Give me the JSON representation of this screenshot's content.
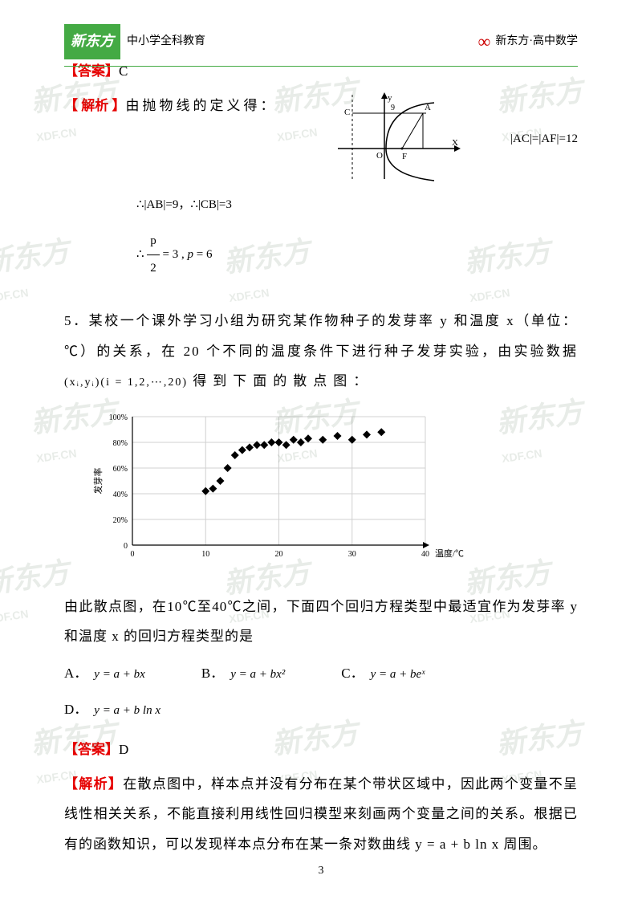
{
  "header": {
    "logo": "新东方",
    "subtitle": "中小学全科教育",
    "right_brand": "新东方·高中数学"
  },
  "q4": {
    "answer_label": "【答案】",
    "answer": "C",
    "analysis_label": "【 解析 】",
    "analysis_text": "由抛物线的定义得：",
    "eq_right": "|AC|=|AF|=12",
    "math_line1": "∴|AB|=9，∴|CB|=3",
    "math_line2": "∴ p/2 = 3 , p = 6",
    "diagram": {
      "labels": {
        "y": "y",
        "x": "X",
        "c": "C",
        "a": "A",
        "f": "F",
        "o": "O",
        "nine": "9"
      }
    }
  },
  "q5": {
    "number": "5．",
    "text_part1": "某校一个课外学习小组为研究某作物种子的发芽率 y 和温度 x（单位：℃）的关系，在 20 个不同的温度条件下进行种子发芽实验，由实验数据",
    "data_notation": "(xᵢ,yᵢ)(i = 1,2,⋯,20)",
    "text_part2": "得到下面的散点图：",
    "chart": {
      "ylabel": "发芽率",
      "xlabel": "温度/℃",
      "y_ticks": [
        "0",
        "20%",
        "40%",
        "60%",
        "80%",
        "100%"
      ],
      "x_ticks": [
        "0",
        "10",
        "20",
        "30",
        "40"
      ],
      "points": [
        [
          10,
          42
        ],
        [
          11,
          44
        ],
        [
          12,
          50
        ],
        [
          13,
          60
        ],
        [
          14,
          70
        ],
        [
          15,
          74
        ],
        [
          16,
          76
        ],
        [
          17,
          78
        ],
        [
          18,
          78
        ],
        [
          19,
          80
        ],
        [
          20,
          80
        ],
        [
          21,
          78
        ],
        [
          22,
          82
        ],
        [
          23,
          80
        ],
        [
          24,
          83
        ],
        [
          26,
          82
        ],
        [
          28,
          85
        ],
        [
          30,
          82
        ],
        [
          32,
          86
        ],
        [
          34,
          88
        ]
      ],
      "xlim": [
        0,
        40
      ],
      "ylim": [
        0,
        100
      ],
      "marker": "diamond",
      "marker_color": "#000000",
      "marker_size": 5,
      "grid_color": "#d0d0d0"
    },
    "after_chart": "由此散点图，在10℃至40℃之间，下面四个回归方程类型中最适宜作为发芽率 y 和温度 x 的回归方程类型的是",
    "option_a_label": "A．",
    "option_a": "y = a + bx",
    "option_b_label": "B．",
    "option_b": "y = a + bx²",
    "option_c_label": "C．",
    "option_c": "y = a + beˣ",
    "option_d_label": "D．",
    "option_d": "y = a + b ln x",
    "answer_label": "【答案】",
    "answer": "D",
    "analysis_label": "【解析】",
    "analysis_text": "在散点图中，样本点并没有分布在某个带状区域中，因此两个变量不呈线性相关关系，不能直接利用线性回归模型来刻画两个变量之间的关系。根据已有的函数知识，可以发现样本点分布在某一条对数曲线 y = a + b ln x  周围。"
  },
  "page_number": "3",
  "watermark": {
    "main": "新东方",
    "sub": "XDF.CN"
  }
}
